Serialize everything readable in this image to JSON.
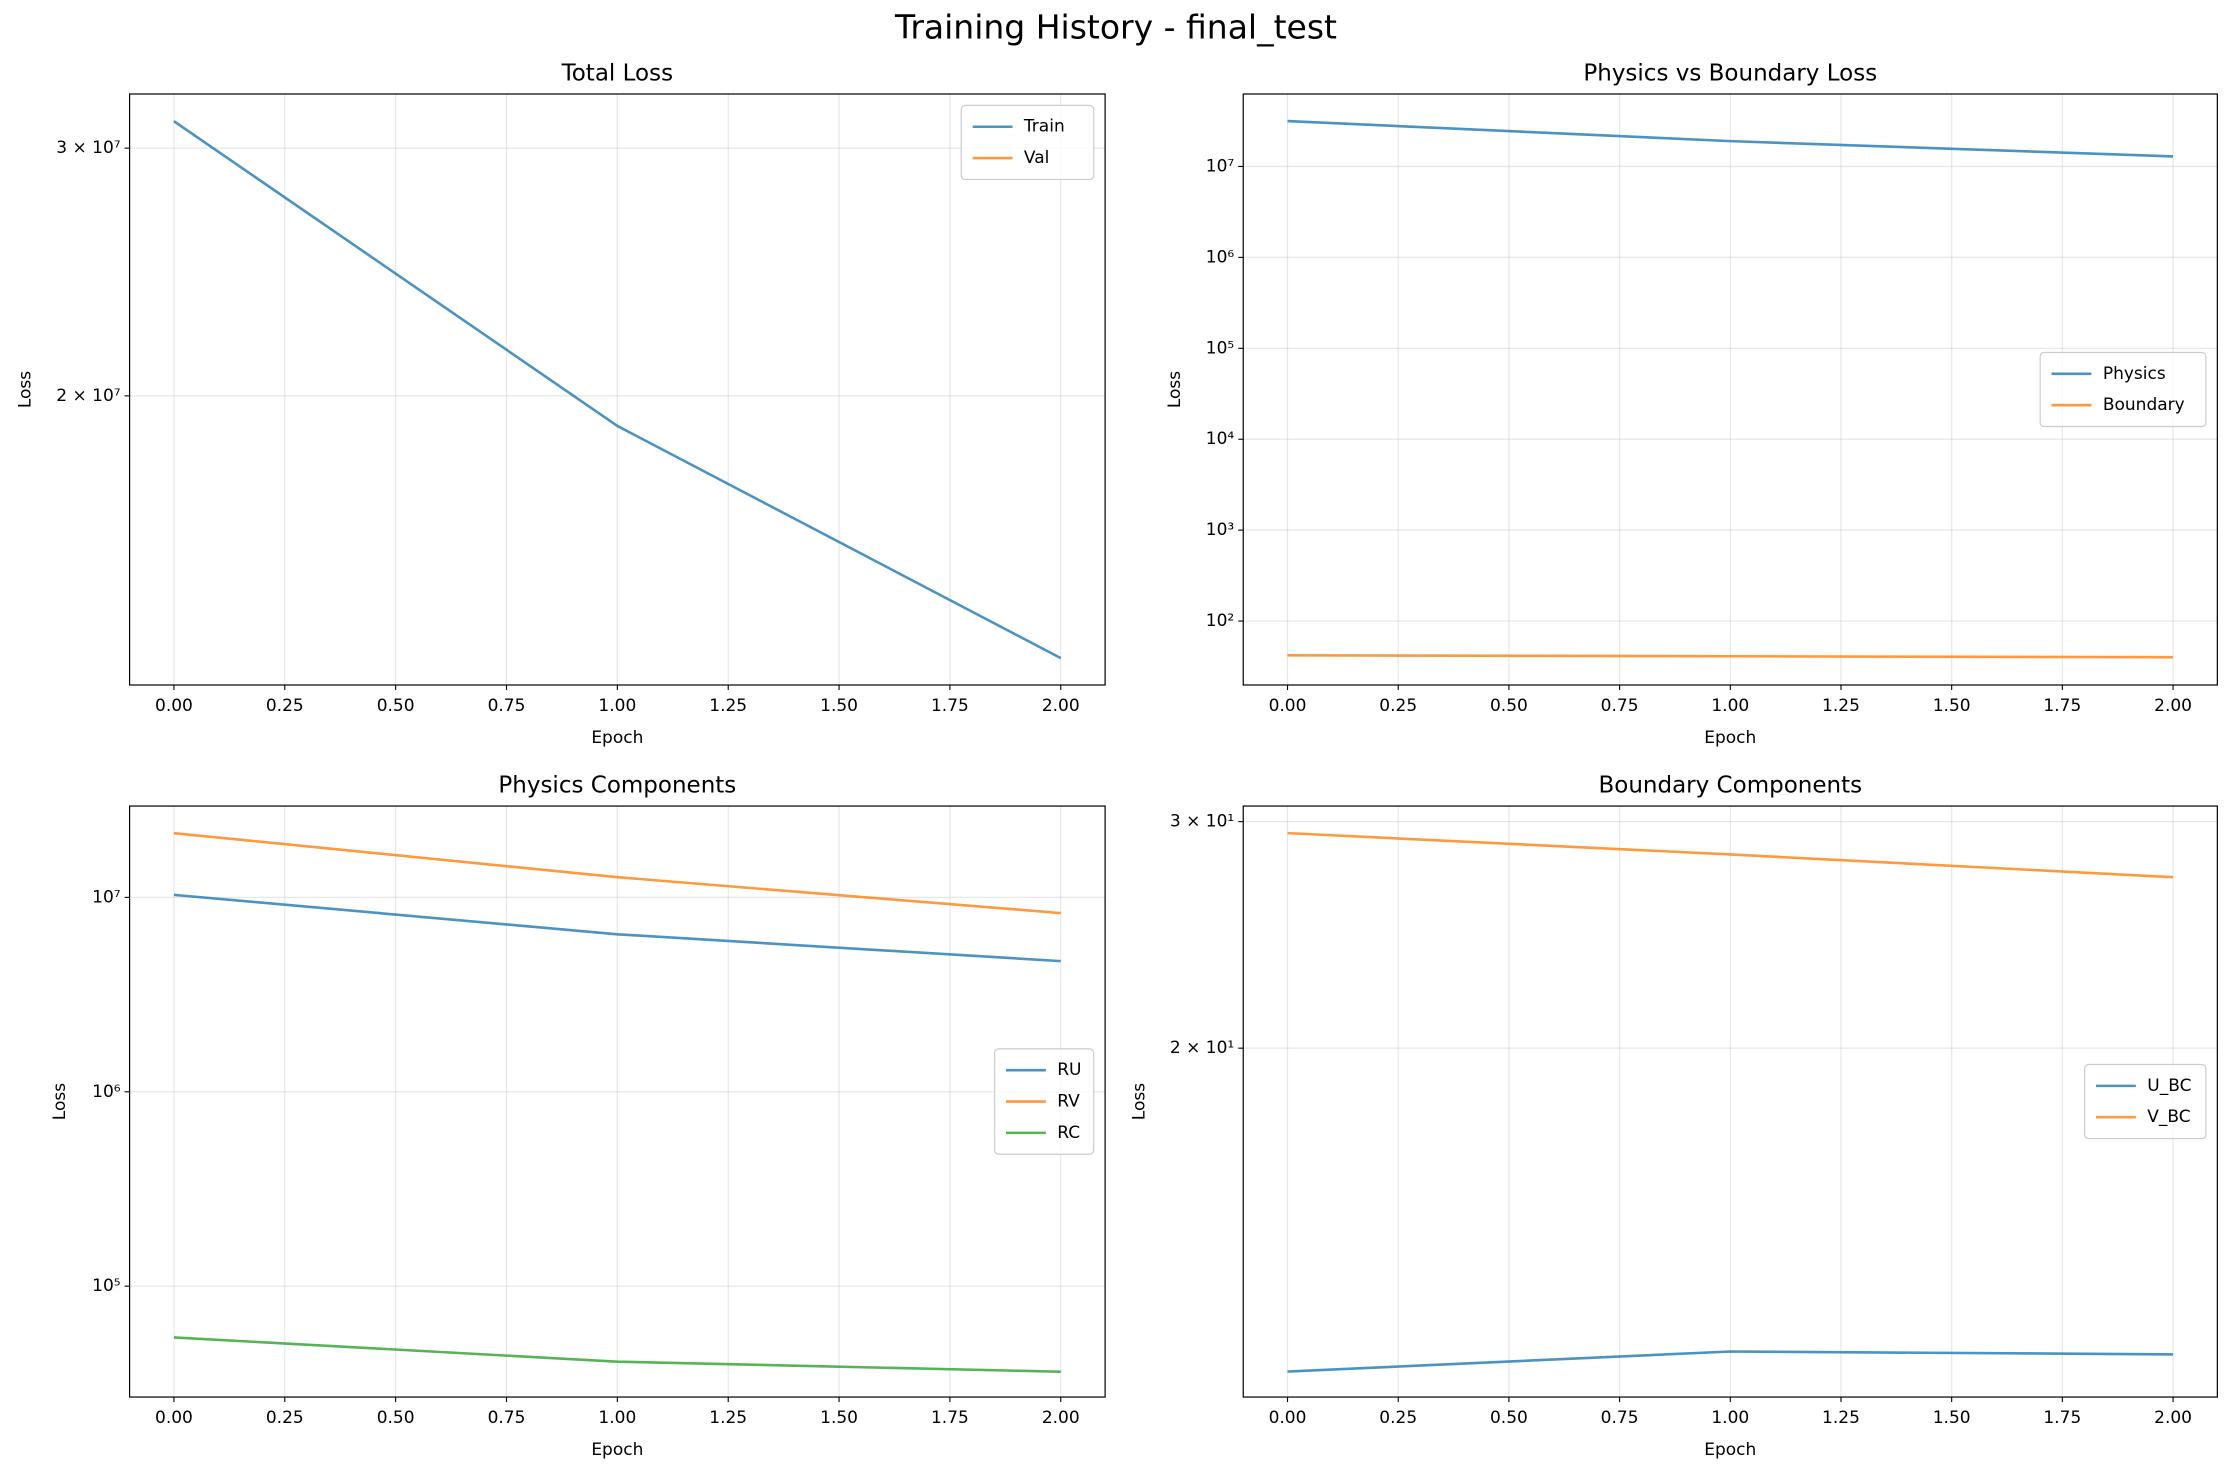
{
  "title": "Training History - final_test",
  "chart_data": [
    {
      "type": "line",
      "title": "Total Loss",
      "x_label": "Epoch",
      "y_label": "Loss",
      "x": [
        0,
        1,
        2
      ],
      "series": [
        {
          "name": "Train",
          "color": "#1f77b4",
          "values": [
            31350000,
            19040000,
            13020000
          ]
        },
        {
          "name": "Val",
          "color": "#ff7f0e",
          "values": [
            null,
            null,
            null
          ]
        }
      ],
      "xlim": [
        -0.1,
        2.1
      ],
      "xticks": [
        {
          "value": 0,
          "label": "0.00"
        },
        0.25,
        {
          "value": 0.5,
          "label": "0.50"
        },
        {
          "value": 0.75,
          "label": "0.75"
        },
        {
          "value": 1,
          "label": "1.00"
        },
        1.25,
        {
          "value": 1.5,
          "label": "1.50"
        },
        1.75,
        {
          "value": 2,
          "label": "2.00"
        }
      ],
      "ylim": [
        12460000,
        32780000
      ],
      "yticks": [
        {
          "value": 20000000,
          "label": "2 × 10⁷"
        },
        {
          "value": 30000000,
          "label": "3 × 10⁷"
        }
      ],
      "log_y": true,
      "grid": true,
      "legend": "upper right"
    },
    {
      "type": "line",
      "title": "Physics vs Boundary Loss",
      "x_label": "Epoch",
      "y_label": "Loss",
      "x": [
        0,
        1,
        2
      ],
      "series": [
        {
          "name": "Physics",
          "color": "#1f77b4",
          "values": [
            31600000,
            19000000,
            12900000
          ]
        },
        {
          "name": "Boundary",
          "color": "#ff7f0e",
          "values": [
            42,
            41,
            40
          ]
        }
      ],
      "xlim": [
        -0.1,
        2.1
      ],
      "xticks": [
        {
          "value": 0,
          "label": "0.00"
        },
        0.25,
        {
          "value": 0.5,
          "label": "0.50"
        },
        {
          "value": 0.75,
          "label": "0.75"
        },
        {
          "value": 1,
          "label": "1.00"
        },
        1.25,
        {
          "value": 1.5,
          "label": "1.50"
        },
        1.75,
        {
          "value": 2,
          "label": "2.00"
        }
      ],
      "ylim": [
        19.8,
        62700000
      ],
      "yticks": [
        {
          "value": 100,
          "label": "10²"
        },
        {
          "value": 1000,
          "label": "10³"
        },
        {
          "value": 10000,
          "label": "10⁴"
        },
        {
          "value": 100000,
          "label": "10⁵"
        },
        {
          "value": 1000000,
          "label": "10⁶"
        },
        {
          "value": 10000000,
          "label": "10⁷"
        }
      ],
      "log_y": true,
      "grid": true,
      "legend": "center right"
    },
    {
      "type": "line",
      "title": "Physics Components",
      "x_label": "Epoch",
      "y_label": "Loss",
      "x": [
        0,
        1,
        2
      ],
      "series": [
        {
          "name": "RU",
          "color": "#1f77b4",
          "values": [
            10300000,
            6460000,
            4700000
          ]
        },
        {
          "name": "RV",
          "color": "#ff7f0e",
          "values": [
            21400000,
            12700000,
            8300000
          ]
        },
        {
          "name": "RC",
          "color": "#2ca02c",
          "values": [
            54500,
            40900,
            36300
          ]
        }
      ],
      "xlim": [
        -0.1,
        2.1
      ],
      "xticks": [
        {
          "value": 0,
          "label": "0.00"
        },
        0.25,
        {
          "value": 0.5,
          "label": "0.50"
        },
        {
          "value": 0.75,
          "label": "0.75"
        },
        {
          "value": 1,
          "label": "1.00"
        },
        1.25,
        {
          "value": 1.5,
          "label": "1.50"
        },
        1.75,
        {
          "value": 2,
          "label": "2.00"
        }
      ],
      "ylim": [
        26900,
        29500000
      ],
      "yticks": [
        {
          "value": 100000,
          "label": "10⁵"
        },
        {
          "value": 1000000,
          "label": "10⁶"
        },
        {
          "value": 10000000,
          "label": "10⁷"
        }
      ],
      "log_y": true,
      "grid": true,
      "legend": "center right"
    },
    {
      "type": "line",
      "title": "Boundary Components",
      "x_label": "Epoch",
      "y_label": "Loss",
      "x": [
        0,
        1,
        2
      ],
      "series": [
        {
          "name": "U_BC",
          "color": "#1f77b4",
          "values": [
            11.21,
            11.62,
            11.56
          ]
        },
        {
          "name": "V_BC",
          "color": "#ff7f0e",
          "values": [
            29.39,
            28.29,
            27.16
          ]
        }
      ],
      "xlim": [
        -0.1,
        2.1
      ],
      "xticks": [
        {
          "value": 0,
          "label": "0.00"
        },
        0.25,
        {
          "value": 0.5,
          "label": "0.50"
        },
        {
          "value": 0.75,
          "label": "0.75"
        },
        {
          "value": 1,
          "label": "1.00"
        },
        1.25,
        {
          "value": 1.5,
          "label": "1.50"
        },
        1.75,
        {
          "value": 2,
          "label": "2.00"
        }
      ],
      "ylim": [
        10.71,
        30.85
      ],
      "yticks": [
        {
          "value": 20,
          "label": "2 × 10¹"
        },
        {
          "value": 30,
          "label": "3 × 10¹"
        }
      ],
      "log_y": true,
      "grid": true,
      "legend": "center right"
    }
  ]
}
